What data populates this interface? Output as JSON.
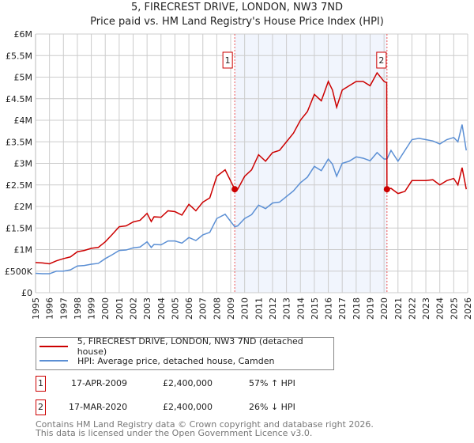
{
  "chart_data": {
    "type": "line",
    "title": "5, FIRECREST DRIVE, LONDON, NW3 7ND",
    "subtitle": "Price paid vs. HM Land Registry's House Price Index (HPI)",
    "xlim": [
      1995,
      2026
    ],
    "ylim": [
      0,
      6000000
    ],
    "y_ticks": [
      {
        "v": 0,
        "label": "£0"
      },
      {
        "v": 500000,
        "label": "£500K"
      },
      {
        "v": 1000000,
        "label": "£1M"
      },
      {
        "v": 1500000,
        "label": "£1.5M"
      },
      {
        "v": 2000000,
        "label": "£2M"
      },
      {
        "v": 2500000,
        "label": "£2.5M"
      },
      {
        "v": 3000000,
        "label": "£3M"
      },
      {
        "v": 3500000,
        "label": "£3.5M"
      },
      {
        "v": 4000000,
        "label": "£4M"
      },
      {
        "v": 4500000,
        "label": "£4.5M"
      },
      {
        "v": 5000000,
        "label": "£5M"
      },
      {
        "v": 5500000,
        "label": "£5.5M"
      },
      {
        "v": 6000000,
        "label": "£6M"
      }
    ],
    "x_ticks": [
      "1995",
      "1996",
      "1997",
      "1998",
      "1999",
      "2000",
      "2001",
      "2002",
      "2003",
      "2004",
      "2005",
      "2006",
      "2007",
      "2008",
      "2009",
      "2010",
      "2011",
      "2012",
      "2013",
      "2014",
      "2015",
      "2016",
      "2017",
      "2018",
      "2019",
      "2020",
      "2021",
      "2022",
      "2023",
      "2024",
      "2025",
      "2026"
    ],
    "grid": true,
    "shaded_range": [
      2009.29,
      2020.21
    ],
    "series": [
      {
        "name": "5, FIRECREST DRIVE, LONDON, NW3 7ND (detached house)",
        "color": "#cc0000",
        "x": [
          1995,
          1995.5,
          1996,
          1996.5,
          1997,
          1997.5,
          1998,
          1998.5,
          1999,
          1999.5,
          2000,
          2000.5,
          2001,
          2001.5,
          2002,
          2002.5,
          2003,
          2003.3,
          2003.5,
          2004,
          2004.5,
          2005,
          2005.5,
          2006,
          2006.5,
          2007,
          2007.5,
          2008,
          2008.6,
          2009.29,
          2009.5,
          2010,
          2010.5,
          2011,
          2011.5,
          2012,
          2012.5,
          2013,
          2013.5,
          2014,
          2014.5,
          2015,
          2015.5,
          2016,
          2016.3,
          2016.6,
          2017,
          2017.5,
          2018,
          2018.5,
          2019,
          2019.5,
          2020,
          2020.19,
          2020.21,
          2020.5,
          2021,
          2021.5,
          2022,
          2022.5,
          2023,
          2023.5,
          2024,
          2024.5,
          2025,
          2025.3,
          2025.6,
          2025.9
        ],
        "y": [
          700000,
          690000,
          670000,
          740000,
          790000,
          830000,
          950000,
          980000,
          1030000,
          1050000,
          1180000,
          1350000,
          1530000,
          1550000,
          1640000,
          1680000,
          1840000,
          1650000,
          1760000,
          1750000,
          1900000,
          1880000,
          1800000,
          2050000,
          1900000,
          2100000,
          2200000,
          2700000,
          2850000,
          2400000,
          2400000,
          2700000,
          2850000,
          3200000,
          3050000,
          3250000,
          3300000,
          3500000,
          3700000,
          4000000,
          4200000,
          4600000,
          4450000,
          4900000,
          4700000,
          4300000,
          4700000,
          4800000,
          4900000,
          4900000,
          4800000,
          5100000,
          4900000,
          4870000,
          2400000,
          2420000,
          2300000,
          2350000,
          2600000,
          2600000,
          2600000,
          2620000,
          2500000,
          2600000,
          2650000,
          2500000,
          2900000,
          2400000
        ]
      },
      {
        "name": "HPI: Average price, detached house, Camden",
        "color": "#5b8fd4",
        "x": [
          1995,
          1995.5,
          1996,
          1996.5,
          1997,
          1997.5,
          1998,
          1998.5,
          1999,
          1999.5,
          2000,
          2000.5,
          2001,
          2001.5,
          2002,
          2002.5,
          2003,
          2003.3,
          2003.5,
          2004,
          2004.5,
          2005,
          2005.5,
          2006,
          2006.5,
          2007,
          2007.5,
          2008,
          2008.6,
          2009.29,
          2009.5,
          2010,
          2010.5,
          2011,
          2011.5,
          2012,
          2012.5,
          2013,
          2013.5,
          2014,
          2014.5,
          2015,
          2015.5,
          2016,
          2016.3,
          2016.6,
          2017,
          2017.5,
          2018,
          2018.5,
          2019,
          2019.5,
          2020,
          2020.21,
          2020.5,
          2021,
          2021.5,
          2022,
          2022.5,
          2023,
          2023.5,
          2024,
          2024.5,
          2025,
          2025.3,
          2025.6,
          2025.9
        ],
        "y": [
          450000,
          440000,
          440000,
          500000,
          500000,
          530000,
          620000,
          630000,
          660000,
          680000,
          790000,
          880000,
          980000,
          990000,
          1040000,
          1060000,
          1180000,
          1050000,
          1120000,
          1110000,
          1200000,
          1200000,
          1150000,
          1280000,
          1210000,
          1340000,
          1400000,
          1720000,
          1820000,
          1530000,
          1550000,
          1720000,
          1810000,
          2030000,
          1950000,
          2080000,
          2100000,
          2230000,
          2360000,
          2550000,
          2680000,
          2930000,
          2830000,
          3100000,
          2980000,
          2700000,
          3000000,
          3050000,
          3150000,
          3120000,
          3060000,
          3250000,
          3100000,
          3100000,
          3300000,
          3050000,
          3300000,
          3550000,
          3580000,
          3550000,
          3520000,
          3450000,
          3550000,
          3600000,
          3500000,
          3900000,
          3300000
        ]
      }
    ],
    "markers": [
      {
        "id": "1",
        "x": 2009.29,
        "y": 2400000
      },
      {
        "id": "2",
        "x": 2020.21,
        "y": 2400000
      }
    ]
  },
  "legend": {
    "items": [
      "5, FIRECREST DRIVE, LONDON, NW3 7ND (detached house)",
      "HPI: Average price, detached house, Camden"
    ]
  },
  "transactions": [
    {
      "id": "1",
      "date": "17-APR-2009",
      "price": "£2,400,000",
      "hpi": "57% ↑ HPI"
    },
    {
      "id": "2",
      "date": "17-MAR-2020",
      "price": "£2,400,000",
      "hpi": "26% ↓ HPI"
    }
  ],
  "footer": {
    "line1": "Contains HM Land Registry data © Crown copyright and database right 2026.",
    "line2": "This data is licensed under the Open Government Licence v3.0."
  }
}
